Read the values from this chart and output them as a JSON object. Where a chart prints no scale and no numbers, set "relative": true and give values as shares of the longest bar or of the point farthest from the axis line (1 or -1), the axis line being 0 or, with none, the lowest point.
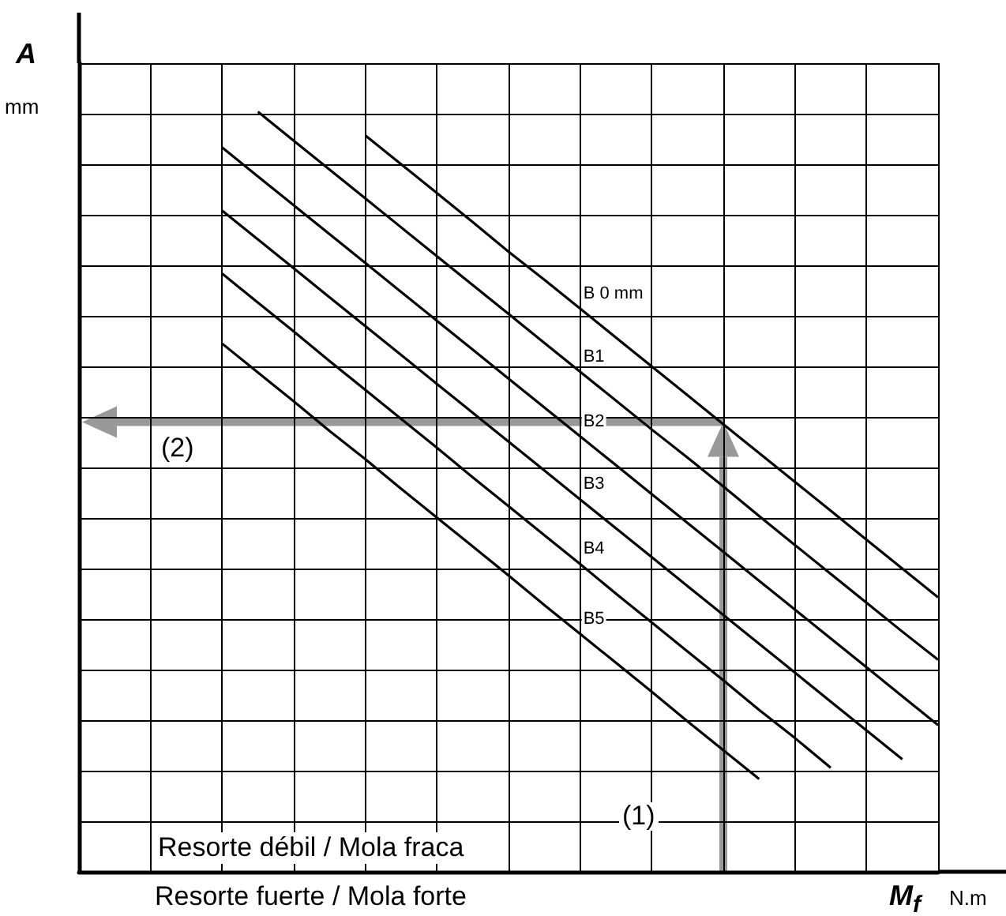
{
  "chart_data": {
    "type": "line",
    "relative": true,
    "xlabel": "M$_{f}$ N.m",
    "ylabel": "A\nmm",
    "grid": true,
    "marker": "none",
    "line_style": "solid",
    "categories": [
      null,
      null,
      null,
      null,
      null,
      null,
      null,
      null,
      null,
      null,
      null,
      null,
      null,
      null,
      null,
      null,
      null,
      null,
      null,
      null,
      null,
      null,
      null,
      null,
      null
    ],
    "series": [
      {
        "name": "B 0 mm",
        "color": "#000000",
        "values": [
          null,
          null,
          null,
          null,
          null,
          null,
          null,
          null,
          0.969,
          0.931,
          0.893,
          0.855,
          0.816,
          0.779,
          0.741,
          0.703,
          0.665,
          0.627,
          0.589,
          0.551,
          0.513,
          0.475,
          0.437,
          0.399,
          0.361
        ]
      },
      {
        "name": "B1",
        "color": "#000000",
        "values": [
          null,
          null,
          null,
          null,
          null,
          1,
          0.962,
          0.924,
          0.886,
          0.848,
          0.81,
          0.772,
          0.734,
          0.696,
          0.658,
          0.62,
          0.582,
          0.545,
          0.507,
          0.468,
          0.43,
          0.392,
          0.354,
          0.316,
          0.279
        ]
      },
      {
        "name": "B2",
        "color": "#000000",
        "values": [
          null,
          null,
          null,
          null,
          0.953,
          0.915,
          0.877,
          0.839,
          0.801,
          0.763,
          0.725,
          0.687,
          0.649,
          0.611,
          0.573,
          0.535,
          0.497,
          0.459,
          0.421,
          0.383,
          0.345,
          0.307,
          0.269,
          0.231,
          0.193
        ]
      },
      {
        "name": "B3",
        "color": "#000000",
        "values": [
          null,
          null,
          null,
          null,
          0.87,
          0.832,
          0.794,
          0.756,
          0.718,
          0.68,
          0.642,
          0.604,
          0.566,
          0.528,
          0.49,
          0.452,
          0.414,
          0.376,
          0.338,
          0.3,
          0.262,
          0.224,
          0.186,
          0.148,
          null
        ]
      },
      {
        "name": "B4",
        "color": "#000000",
        "values": [
          null,
          null,
          null,
          null,
          0.787,
          0.749,
          0.711,
          0.672,
          0.634,
          0.596,
          0.558,
          0.519,
          0.481,
          0.443,
          0.405,
          0.366,
          0.328,
          0.29,
          0.252,
          0.213,
          0.176,
          0.137,
          null,
          null,
          null
        ]
      },
      {
        "name": "B5",
        "color": "#000000",
        "values": [
          null,
          null,
          null,
          null,
          0.695,
          0.657,
          0.619,
          0.58,
          0.543,
          0.504,
          0.466,
          0.428,
          0.39,
          0.351,
          0.313,
          0.275,
          0.237,
          0.198,
          0.16,
          0.122,
          null,
          null,
          null,
          null,
          null
        ]
      }
    ],
    "annotations": [
      "(1)",
      "(2)",
      "Resorte débil / Mola fraca",
      "Resorte fuerte / Mola forte"
    ]
  }
}
